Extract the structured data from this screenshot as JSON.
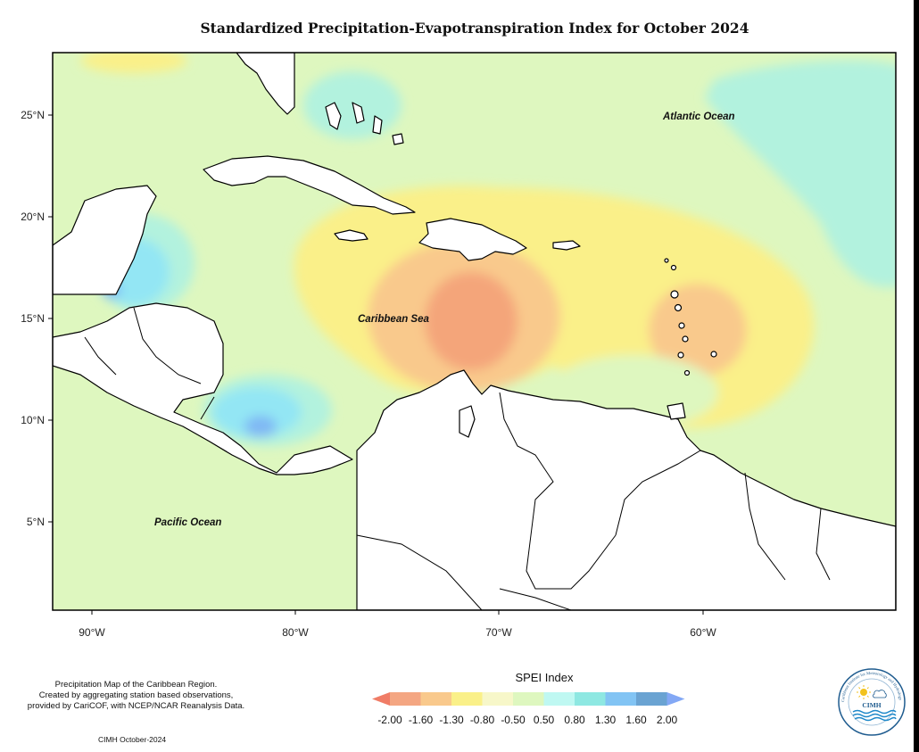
{
  "map": {
    "title": "Standardized Precipitation-Evapotranspiration Index for October 2024",
    "lat_labels": [
      "25°N",
      "20°N",
      "15°N",
      "10°N",
      "5°N"
    ],
    "lon_labels": [
      "90°W",
      "80°W",
      "70°W",
      "60°W"
    ],
    "places": {
      "atlantic": "Atlantic Ocean",
      "caribbean": "Caribbean Sea",
      "pacific": "Pacific Ocean"
    },
    "colors": {
      "green_base": "#def7bf",
      "yellow": "#faf089",
      "light_orange": "#f9c98c",
      "orange": "#f4a57a",
      "teal": "#b2f2de",
      "cyan": "#93e6f4",
      "blue": "#7fb7f4",
      "land": "#ffffff",
      "border": "#000000"
    }
  },
  "legend": {
    "title": "SPEI Index",
    "ticks": [
      "-2.00",
      "-1.60",
      "-1.30",
      "-0.80",
      "-0.50",
      "0.50",
      "0.80",
      "1.30",
      "1.60",
      "2.00"
    ],
    "colors": [
      "#f07c66",
      "#f4a682",
      "#f9c98c",
      "#faf089",
      "#f7f7c9",
      "#def7bf",
      "#bff8f2",
      "#8ee8e2",
      "#82c4f4",
      "#6aa3d2",
      "#83a8f5"
    ]
  },
  "credits": {
    "line1": "Precipitation Map of the Caribbean Region.",
    "line2": "Created by aggregating station based observations,",
    "line3": "provided by CariCOF, with NCEP/NCAR Reanalysis Data.",
    "footer": "CIMH October-2024"
  },
  "logo": {
    "ring_text": "Caribbean Institute for Meteorology and Hydrology",
    "label": "CIMH",
    "sun_icon": "sun-icon",
    "cloud_icon": "cloud-icon"
  }
}
